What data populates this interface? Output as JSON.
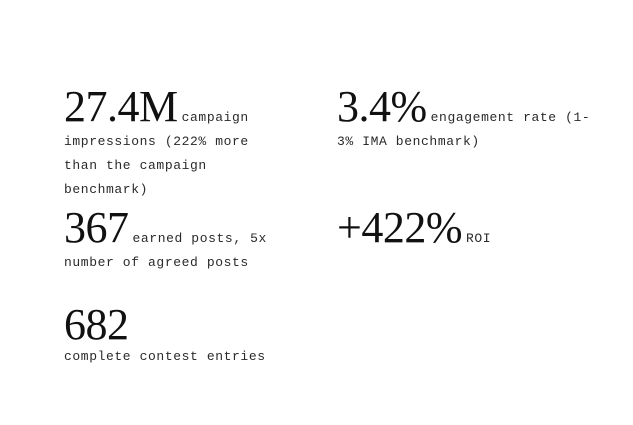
{
  "stats": [
    {
      "value": "27.4M",
      "description": "campaign impressions (222% more than the campaign benchmark)"
    },
    {
      "value": "3.4%",
      "description": "engagement rate (1-3% IMA benchmark)"
    },
    {
      "value": "367",
      "description": "earned posts, 5x number of agreed posts"
    },
    {
      "value": "+422%",
      "description": "ROI"
    },
    {
      "value": "682",
      "description": "complete contest entries"
    }
  ]
}
